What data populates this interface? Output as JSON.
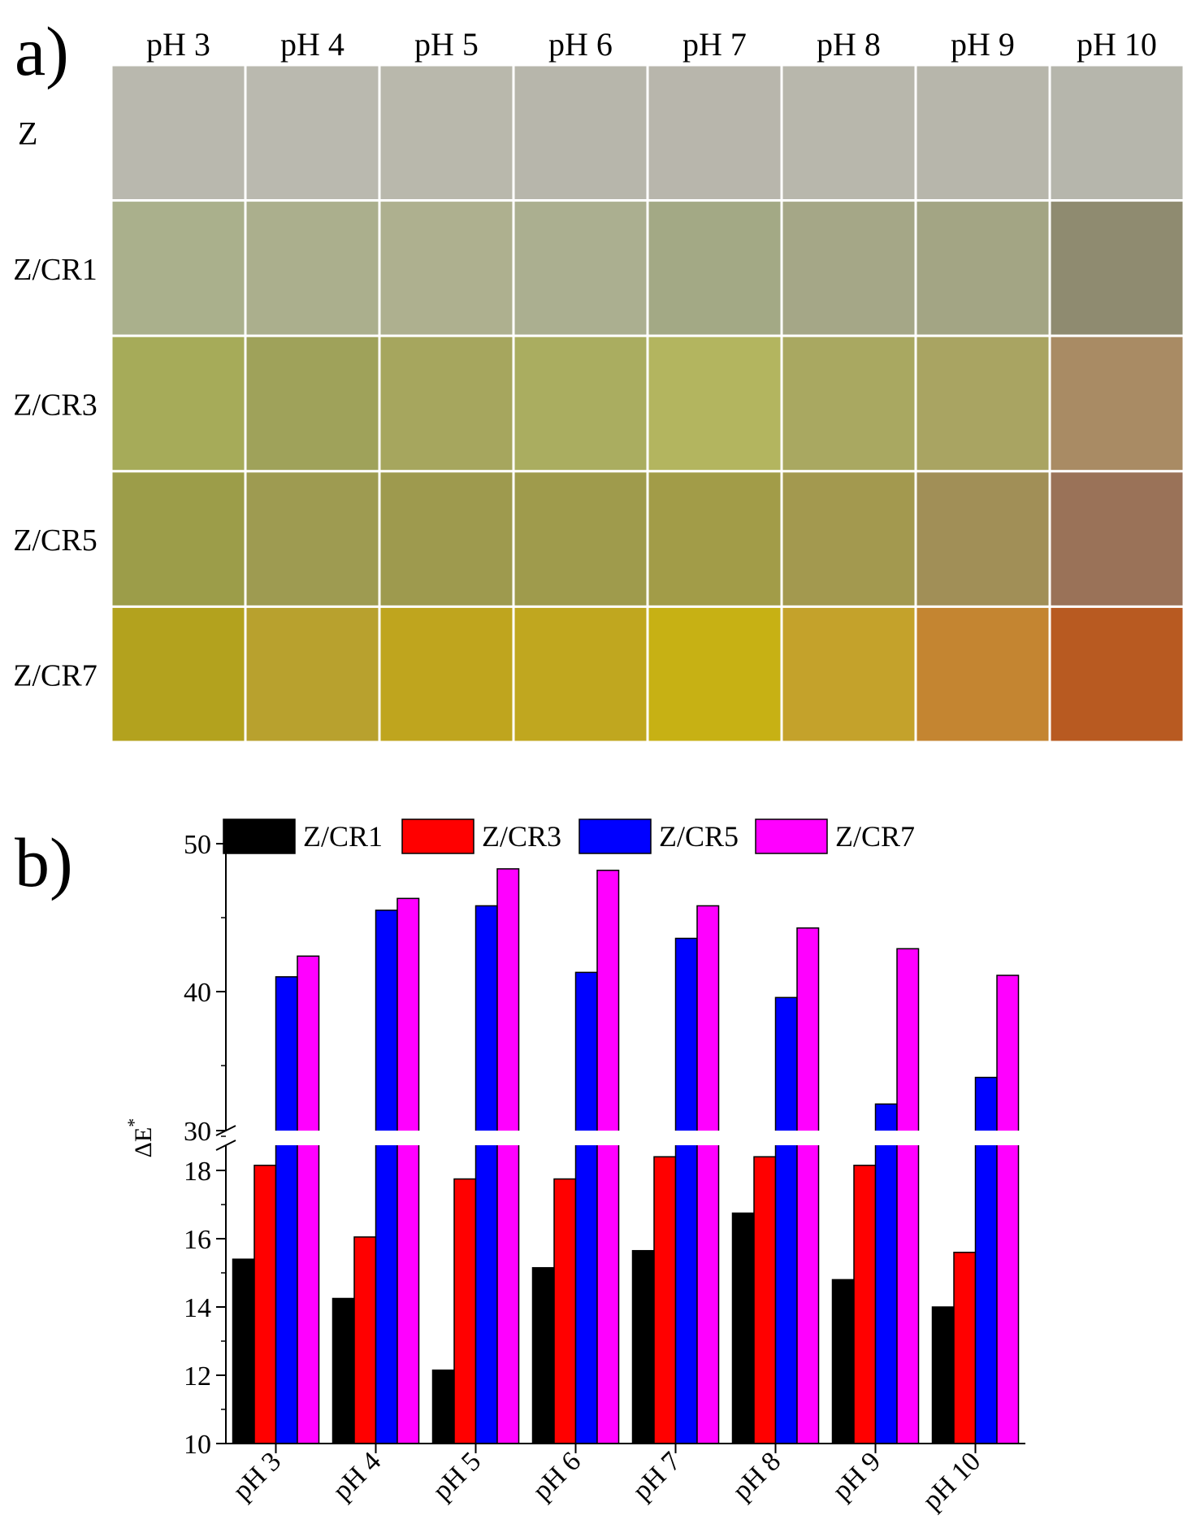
{
  "panel_a": {
    "label": "a)",
    "columns": [
      "pH 3",
      "pH 4",
      "pH 5",
      "pH 6",
      "pH 7",
      "pH 8",
      "pH 9",
      "pH 10"
    ],
    "rows": [
      {
        "name": "Z",
        "colors": [
          "#b9b8ae",
          "#bab9af",
          "#b9b8ac",
          "#b7b6ab",
          "#b8b6ac",
          "#b8b7ac",
          "#b7b6ab",
          "#b6b6ac"
        ]
      },
      {
        "name": "Z/CR1",
        "colors": [
          "#aab08c",
          "#abaf8d",
          "#aeb08f",
          "#abaf90",
          "#a3a985",
          "#a5a787",
          "#a3a584",
          "#8f8b70"
        ]
      },
      {
        "name": "Z/CR3",
        "colors": [
          "#a6ab59",
          "#9fa25a",
          "#a6a65e",
          "#aaad60",
          "#b3b55f",
          "#a9a861",
          "#a9a462",
          "#a98b64"
        ]
      },
      {
        "name": "Z/CR5",
        "colors": [
          "#9c9d49",
          "#9e9b51",
          "#9e9a4e",
          "#9f9b4c",
          "#a29c48",
          "#a3994f",
          "#a18f57",
          "#9a7258"
        ]
      },
      {
        "name": "Z/CR7",
        "colors": [
          "#b3a21e",
          "#b8a12e",
          "#bfa51e",
          "#c0a71f",
          "#c7b114",
          "#c4a22b",
          "#c48531",
          "#b85a21"
        ]
      }
    ]
  },
  "panel_b": {
    "label": "b)"
  },
  "chart_data": {
    "type": "bar",
    "categories": [
      "pH 3",
      "pH 4",
      "pH 5",
      "pH 6",
      "pH 7",
      "pH 8",
      "pH 9",
      "pH 10"
    ],
    "series": [
      {
        "name": "Z/CR1",
        "color": "#000000",
        "values": [
          15.4,
          14.25,
          12.15,
          15.15,
          15.65,
          16.75,
          14.8,
          14.0
        ]
      },
      {
        "name": "Z/CR3",
        "color": "#ff0000",
        "values": [
          18.15,
          16.05,
          17.75,
          17.75,
          18.4,
          18.4,
          18.15,
          15.6
        ]
      },
      {
        "name": "Z/CR5",
        "color": "#0000ff",
        "values": [
          41.0,
          45.5,
          45.8,
          41.3,
          43.6,
          39.6,
          32.4,
          34.2
        ]
      },
      {
        "name": "Z/CR7",
        "color": "#ff00ff",
        "values": [
          42.4,
          46.3,
          48.3,
          48.2,
          45.8,
          44.3,
          42.9,
          41.1
        ]
      }
    ],
    "ylabel": "ΔE",
    "ylabel_superscript": "*",
    "ylim": [
      10,
      50
    ],
    "axis_break": [
      19,
      30
    ],
    "yticks_lower": [
      "10",
      "12",
      "14",
      "16",
      "18"
    ],
    "yticks_upper": [
      "30",
      "40",
      "50"
    ],
    "legend": "top"
  }
}
